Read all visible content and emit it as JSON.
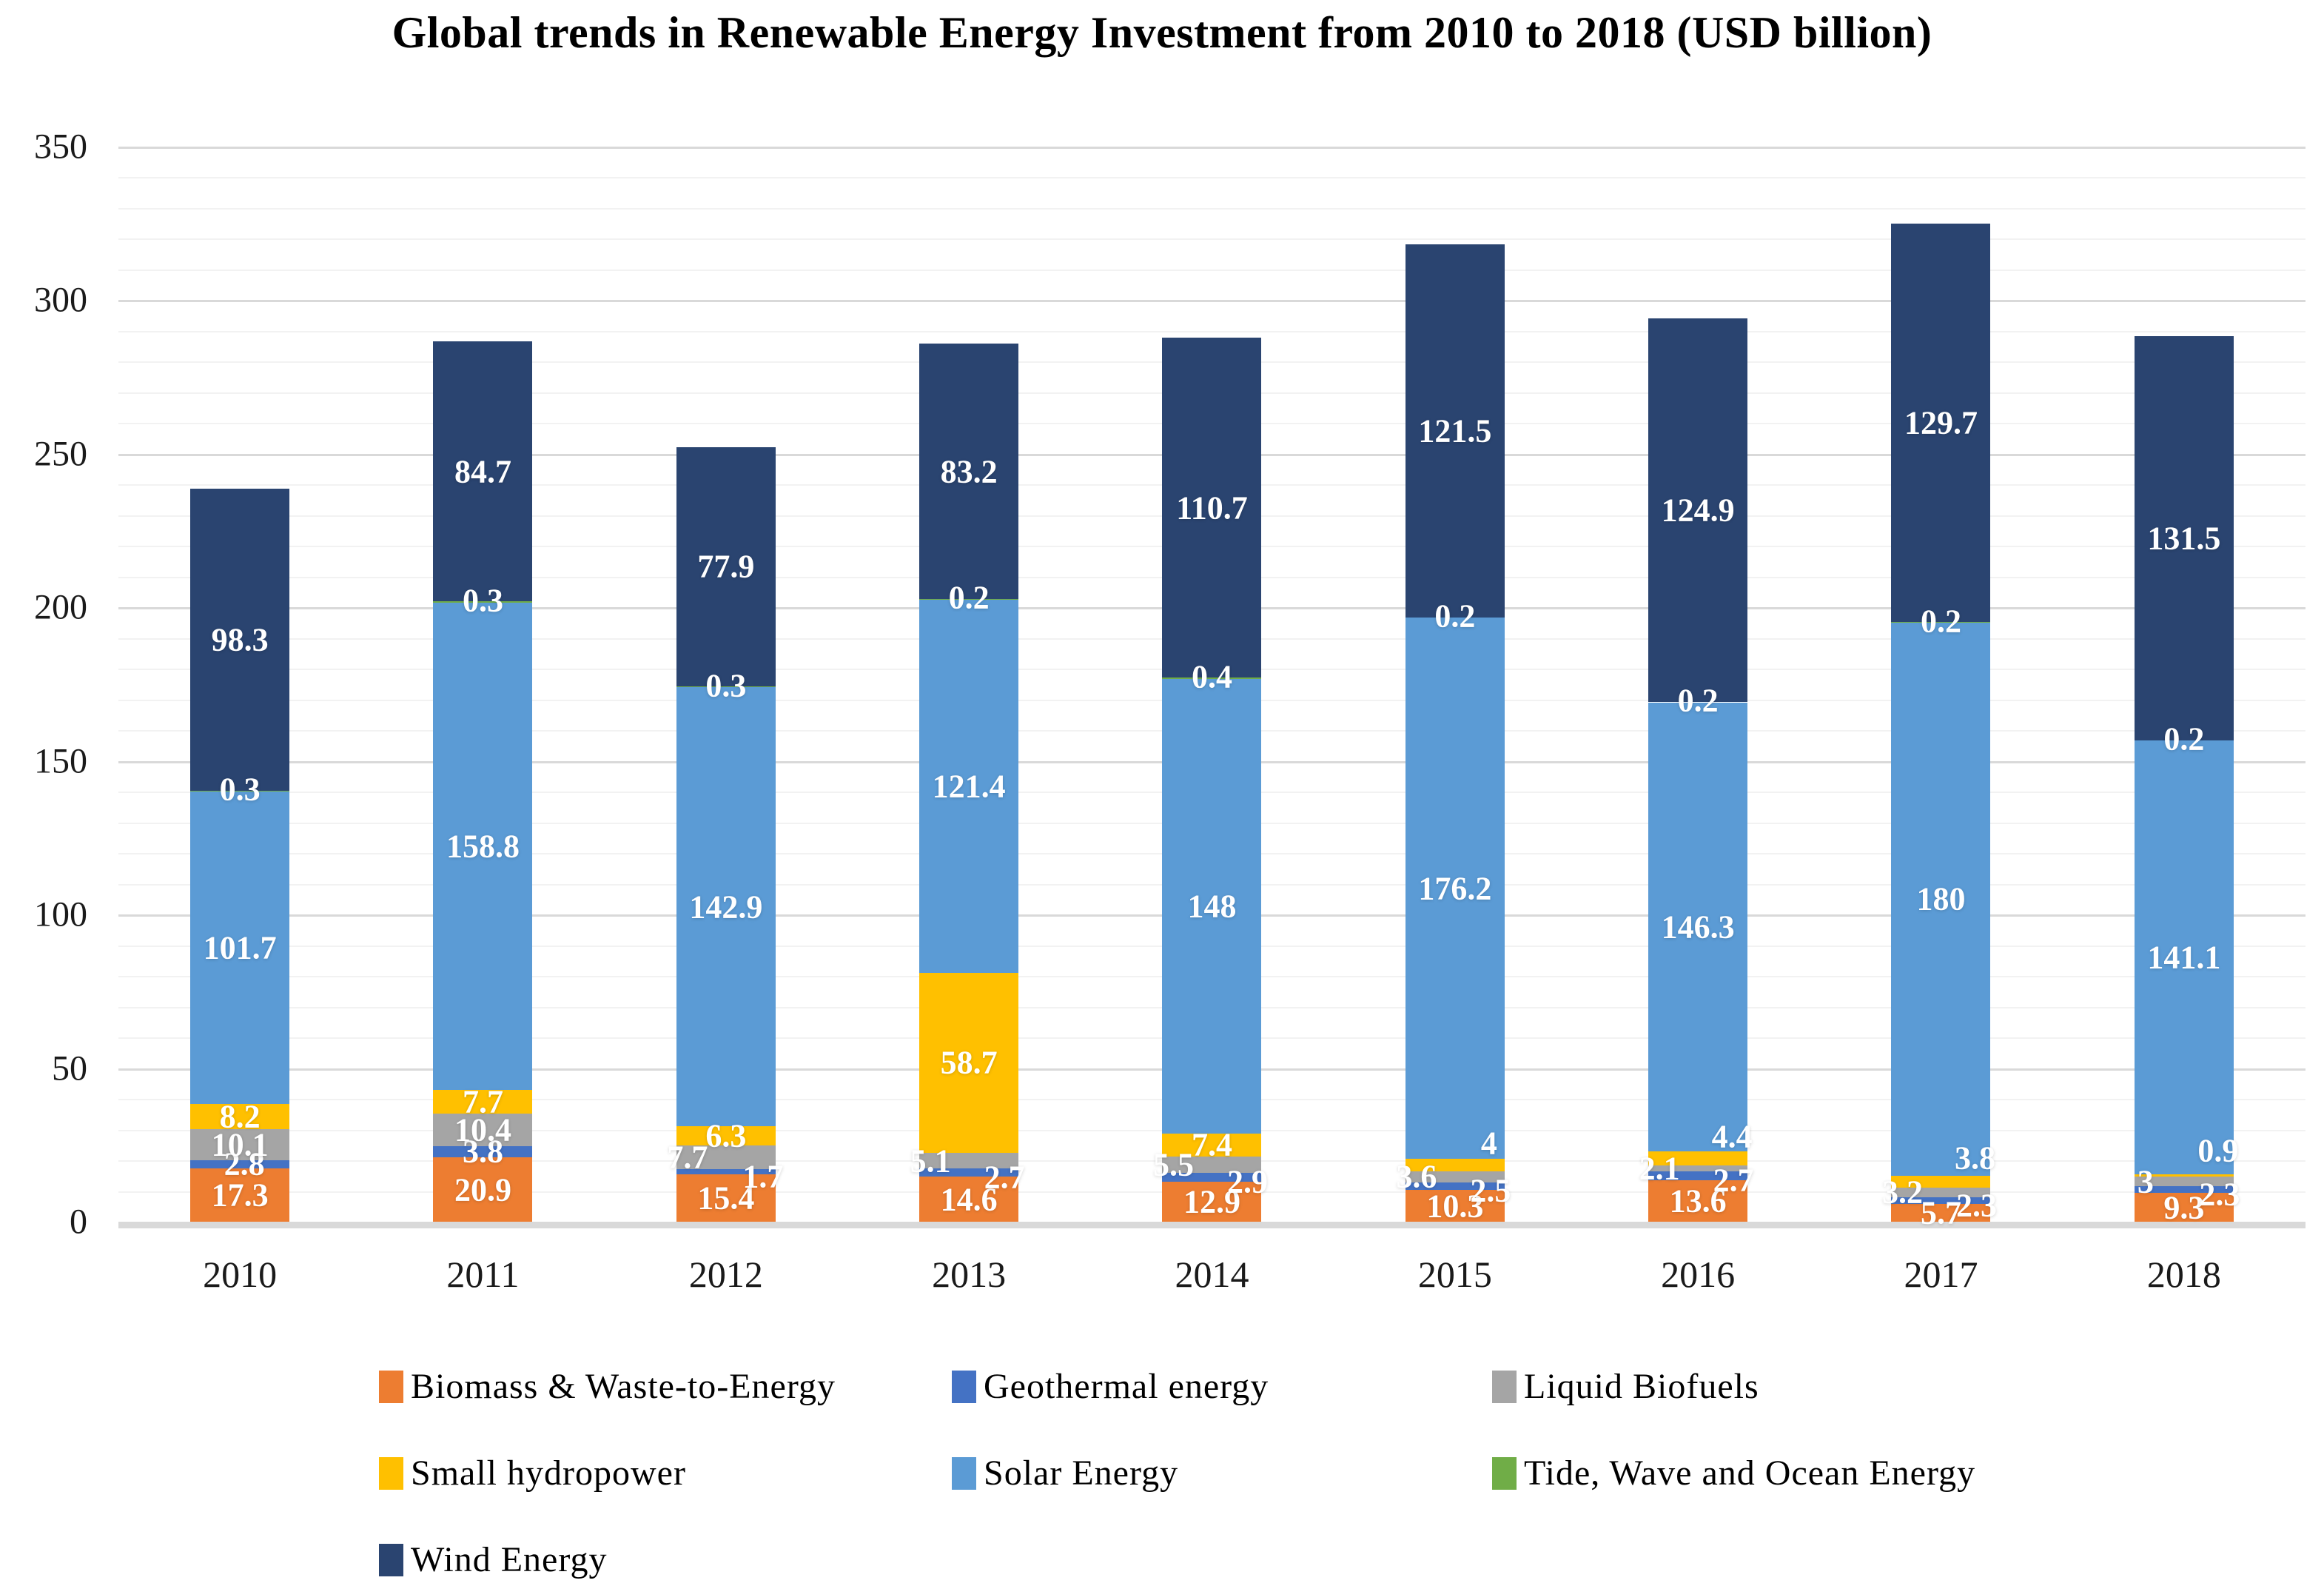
{
  "chart_data": {
    "type": "bar",
    "stacked": true,
    "title": "Global trends in Renewable Energy Investment from 2010 to 2018 (USD billion)",
    "xlabel": "",
    "ylabel": "",
    "ylim": [
      0,
      350
    ],
    "ytick_step": 50,
    "minor_grid_step": 10,
    "yticks": [
      "0",
      "50",
      "100",
      "150",
      "200",
      "250",
      "300",
      "350"
    ],
    "grid": "on",
    "legend_position": "bottom",
    "categories": [
      "2010",
      "2011",
      "2012",
      "2013",
      "2014",
      "2015",
      "2016",
      "2017",
      "2018"
    ],
    "series": [
      {
        "name": "Biomass & Waste-to-Energy",
        "color": "#ED7D31",
        "values": [
          17.3,
          20.9,
          15.4,
          14.6,
          12.9,
          10.3,
          13.6,
          5.7,
          9.3
        ],
        "label_dx": [
          0,
          0,
          0,
          0,
          0,
          0,
          0,
          0,
          0
        ],
        "label_dy": [
          0,
          0,
          0,
          0,
          0,
          0,
          0,
          0,
          0
        ]
      },
      {
        "name": "Geothermal energy",
        "color": "#4472C4",
        "values": [
          2.8,
          3.8,
          1.7,
          2.7,
          2.9,
          2.5,
          2.7,
          2.3,
          2.3
        ],
        "label_dx": [
          6,
          0,
          50,
          48,
          48,
          48,
          48,
          48,
          48
        ],
        "label_dy": [
          0,
          0,
          6,
          6,
          6,
          6,
          6,
          6,
          6
        ]
      },
      {
        "name": "Liquid Biofuels",
        "color": "#A5A5A5",
        "values": [
          10.1,
          10.4,
          7.7,
          5.1,
          5.5,
          3.6,
          2.1,
          3.2,
          3
        ],
        "label_dx": [
          0,
          0,
          -52,
          -52,
          -52,
          -52,
          -52,
          -52,
          -52
        ],
        "label_dy": [
          0,
          0,
          0,
          0,
          0,
          0,
          0,
          0,
          0
        ]
      },
      {
        "name": "Small hydropower",
        "color": "#FFC000",
        "values": [
          8.2,
          7.7,
          6.3,
          58.7,
          7.4,
          4,
          4.4,
          3.8,
          0.9
        ],
        "label_dx": [
          0,
          0,
          0,
          0,
          0,
          46,
          46,
          46,
          46
        ],
        "label_dy": [
          0,
          0,
          0,
          0,
          0,
          -30,
          -30,
          -32,
          -34
        ]
      },
      {
        "name": "Solar Energy",
        "color": "#5B9BD5",
        "values": [
          101.7,
          158.8,
          142.9,
          121.4,
          148,
          176.2,
          146.3,
          180,
          141.1
        ],
        "label_dx": [
          0,
          0,
          0,
          0,
          0,
          0,
          0,
          0,
          0
        ],
        "label_dy": [
          0,
          0,
          0,
          0,
          0,
          0,
          0,
          0,
          0
        ]
      },
      {
        "name": "Tide, Wave and Ocean Energy",
        "color": "#70AD47",
        "values": [
          0.3,
          0.3,
          0.3,
          0.2,
          0.4,
          0.2,
          0.2,
          0.2,
          0.2
        ],
        "label_dx": [
          0,
          0,
          0,
          0,
          0,
          0,
          0,
          0,
          0
        ],
        "label_dy": [
          -2,
          -2,
          -2,
          -2,
          -2,
          -2,
          -2,
          -2,
          -2
        ]
      },
      {
        "name": "Wind Energy",
        "color": "#2A4470",
        "values": [
          98.3,
          84.7,
          77.9,
          83.2,
          110.7,
          121.5,
          124.9,
          129.7,
          131.5
        ],
        "label_dx": [
          0,
          0,
          0,
          0,
          0,
          0,
          0,
          0,
          0
        ],
        "label_dy": [
          0,
          0,
          0,
          0,
          0,
          0,
          0,
          0,
          0
        ]
      }
    ]
  }
}
